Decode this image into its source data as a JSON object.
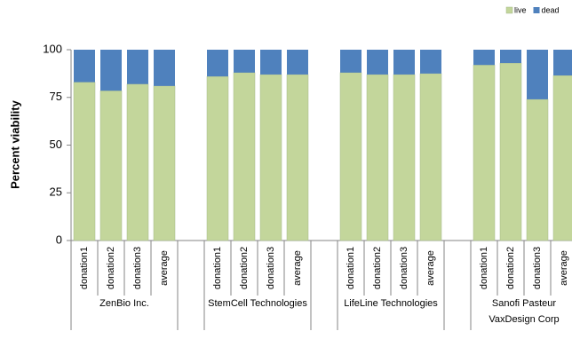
{
  "chart_data": {
    "type": "stacked-bar",
    "y_label": "Percent viability",
    "ylim": [
      0,
      100
    ],
    "yticks": [
      0,
      25,
      50,
      75,
      100
    ],
    "legend_position": "top-right",
    "groups": [
      {
        "label": [
          "ZenBio Inc."
        ],
        "categories": [
          "donation1",
          "donation2",
          "donation3",
          "average"
        ]
      },
      {
        "label": [
          "StemCell Technologies"
        ],
        "categories": [
          "donation1",
          "donation2",
          "donation3",
          "average"
        ]
      },
      {
        "label": [
          "LifeLine Technologies"
        ],
        "categories": [
          "donation1",
          "donation2",
          "donation3",
          "average"
        ]
      },
      {
        "label": [
          "Sanofi Pasteur",
          "VaxDesign Corp"
        ],
        "categories": [
          "donation1",
          "donation2",
          "donation3",
          "average"
        ]
      }
    ],
    "series": [
      {
        "name": "live",
        "color": "#c3d69b",
        "values": [
          83,
          78.5,
          82,
          81,
          86,
          88,
          87,
          87,
          88,
          87,
          87,
          87.5,
          92,
          93,
          74,
          86.5
        ]
      },
      {
        "name": "dead",
        "color": "#4f81bd",
        "values": [
          17,
          21.5,
          18,
          19,
          14,
          12,
          13,
          13,
          12,
          13,
          13,
          12.5,
          8,
          7,
          26,
          13.5
        ]
      }
    ]
  }
}
